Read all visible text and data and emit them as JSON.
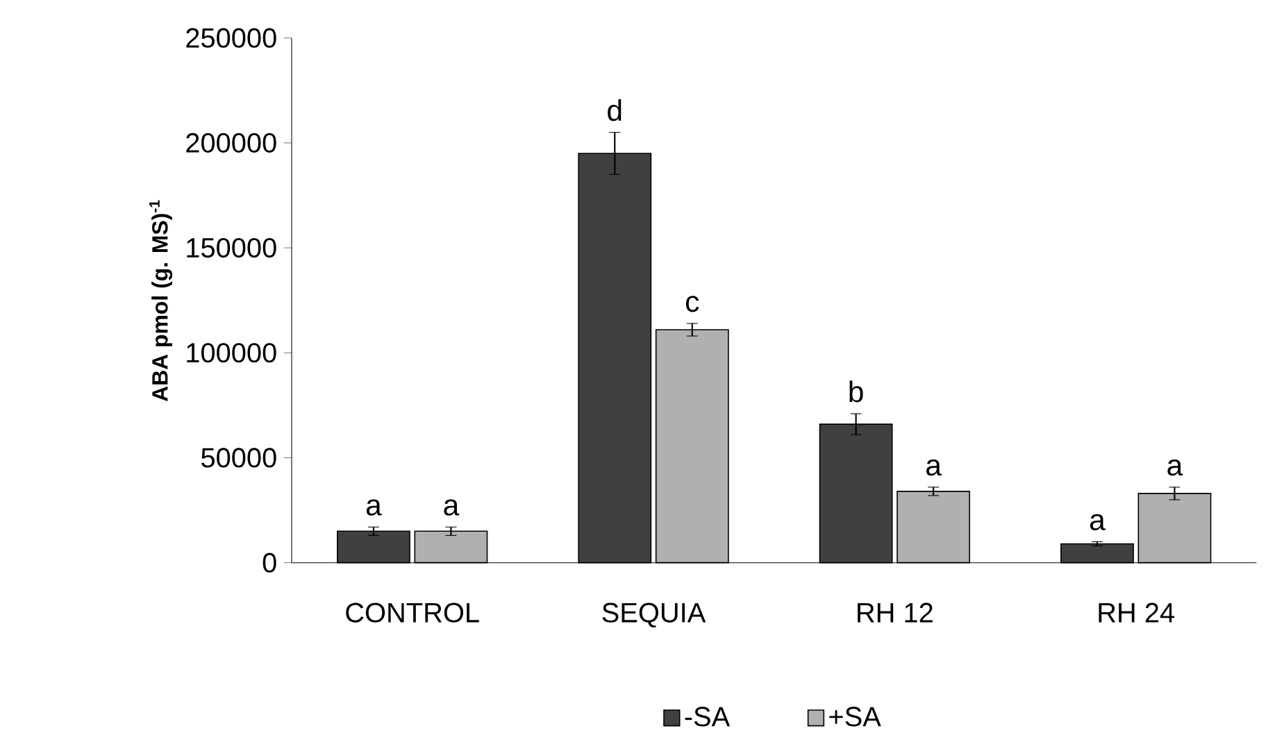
{
  "chart_data": {
    "type": "bar",
    "ylabel": "ABA pmol (g. MS)$^{-1}$",
    "categories": [
      "CONTROL",
      "SEQUIA",
      "RH 12",
      "RH 24"
    ],
    "series": [
      {
        "name": "-SA",
        "color": "#404040",
        "values": [
          15000,
          195000,
          66000,
          9000
        ],
        "errors": [
          2000,
          10000,
          5000,
          1000
        ]
      },
      {
        "name": "+SA",
        "color": "#b0b0b0",
        "values": [
          15000,
          111000,
          34000,
          33000
        ],
        "errors": [
          2000,
          3000,
          2000,
          3000
        ]
      }
    ],
    "ylim": [
      0,
      250000
    ],
    "yticks": [
      0,
      50000,
      100000,
      150000,
      200000,
      250000
    ],
    "grid": false,
    "legend": "bottom",
    "annotations": [
      "a",
      "a",
      "d",
      "c",
      "b",
      "a",
      "a",
      "a"
    ]
  }
}
